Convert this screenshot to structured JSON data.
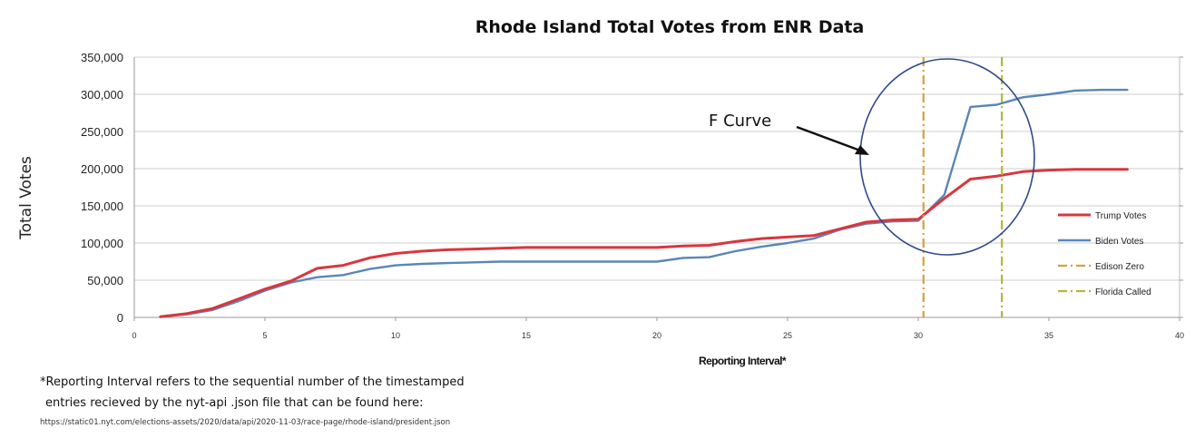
{
  "chart_data": {
    "type": "line",
    "title": "Rhode Island Total Votes from ENR Data",
    "xlabel": "Reporting Interval*",
    "ylabel": "Total Votes",
    "xlim": [
      0,
      40
    ],
    "ylim": [
      0,
      350000
    ],
    "xticks": [
      "0",
      "5",
      "10",
      "15",
      "20",
      "25",
      "30",
      "35",
      "40"
    ],
    "yticks": [
      "0",
      "50,000",
      "100,000",
      "150,000",
      "200,000",
      "250,000",
      "300,000",
      "350,000"
    ],
    "grid": true,
    "legend_position": "right",
    "series": [
      {
        "name": "Trump Votes",
        "color": "#d9363e",
        "x": [
          1,
          2,
          3,
          4,
          5,
          6,
          7,
          8,
          9,
          10,
          11,
          12,
          13,
          14,
          15,
          16,
          17,
          18,
          19,
          20,
          21,
          22,
          23,
          24,
          25,
          26,
          27,
          28,
          29,
          30,
          31,
          32,
          33,
          34,
          35,
          36,
          37,
          38
        ],
        "values": [
          1000,
          5000,
          12000,
          25000,
          38000,
          49000,
          66000,
          70000,
          80000,
          86000,
          89000,
          91000,
          92000,
          93000,
          94000,
          94000,
          94000,
          94000,
          94000,
          94000,
          96000,
          97000,
          102000,
          106000,
          108000,
          110000,
          119000,
          128000,
          131000,
          132000,
          160000,
          186000,
          190000,
          196000,
          198000,
          199000,
          199000,
          199000
        ]
      },
      {
        "name": "Biden Votes",
        "color": "#5b86b6",
        "x": [
          1,
          2,
          3,
          4,
          5,
          6,
          7,
          8,
          9,
          10,
          11,
          12,
          13,
          14,
          15,
          16,
          17,
          18,
          19,
          20,
          21,
          22,
          23,
          24,
          25,
          26,
          27,
          28,
          29,
          30,
          31,
          32,
          33,
          34,
          35,
          36,
          37,
          38
        ],
        "values": [
          1000,
          4000,
          10000,
          22000,
          36000,
          47000,
          54000,
          57000,
          65000,
          70000,
          72000,
          73000,
          74000,
          75000,
          75000,
          75000,
          75000,
          75000,
          75000,
          75000,
          80000,
          81000,
          89000,
          95000,
          100000,
          106000,
          118000,
          126000,
          129000,
          130000,
          165000,
          283000,
          286000,
          296000,
          300000,
          305000,
          306000,
          306000
        ]
      }
    ],
    "vlines": [
      {
        "name": "Edison Zero",
        "x": 30.2,
        "color": "#d6a03c"
      },
      {
        "name": "Florida Called",
        "x": 33.2,
        "color": "#b5b536"
      }
    ],
    "annotations": [
      {
        "text": "F Curve"
      }
    ],
    "legend": [
      "Trump Votes",
      "Biden Votes",
      "Edison Zero",
      "Florida Called"
    ]
  },
  "footnote": {
    "line1": "*Reporting Interval refers to the sequential number of the timestamped",
    "line2": "entries recieved by the nyt-api .json file that can be found here:",
    "line3": "https://static01.nyt.com/elections-assets/2020/data/api/2020-11-03/race-page/rhode-island/president.json"
  }
}
